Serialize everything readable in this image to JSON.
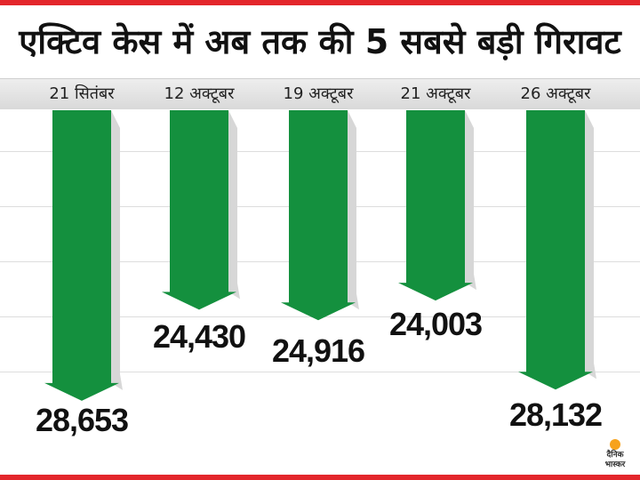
{
  "title": "एक्टिव केस में अब तक की 5 सबसे बड़ी गिरावट",
  "chart_data": {
    "type": "bar",
    "orientation": "downward-arrows",
    "title": "एक्टिव केस में अब तक की 5 सबसे बड़ी गिरावट",
    "categories": [
      "21 सितंबर",
      "12 अक्टूबर",
      "19 अक्टूबर",
      "21 अक्टूबर",
      "26 अक्टूबर"
    ],
    "values": [
      28653,
      24430,
      24916,
      24003,
      28132
    ],
    "labels": [
      "28,653",
      "24,430",
      "24,916",
      "24,003",
      "28,132"
    ],
    "xlabel": "",
    "ylabel": "",
    "grid": true,
    "color": "#14903e"
  },
  "logo": {
    "line1": "दैनिक",
    "line2": "भास्कर"
  },
  "colors": {
    "accent": "#e3262b",
    "arrow": "#14903e"
  }
}
